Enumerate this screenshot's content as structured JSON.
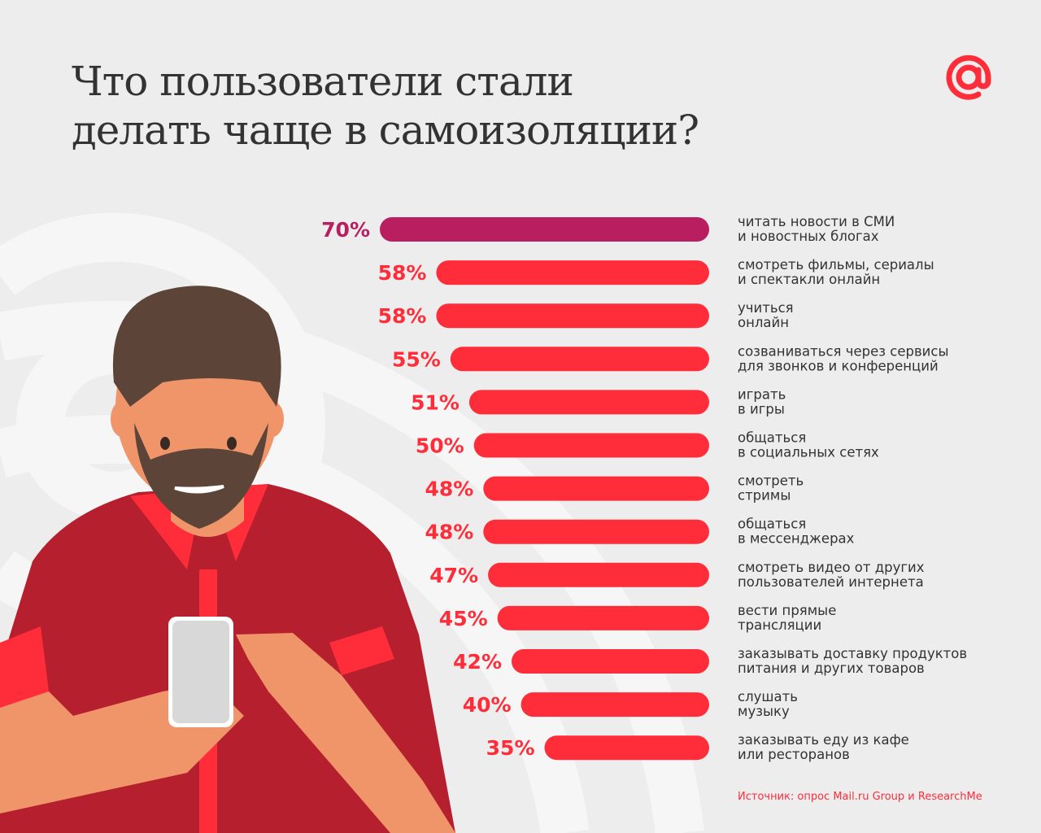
{
  "title": {
    "line1": "Что пользователи стали",
    "line2": "делать чаще в самоизоляции?"
  },
  "logo": {
    "icon": "mail-ru-at-logo",
    "color": "#ff2d3a"
  },
  "source": "Источник: опрос Mail.ru Group и ResearchMe",
  "colors": {
    "background": "#ededed",
    "highlight": "#b81e60",
    "bar": "#ff2d3a",
    "text": "#333333"
  },
  "chart_data": {
    "type": "bar",
    "orientation": "horizontal",
    "unit": "%",
    "xlim": [
      0,
      70
    ],
    "grid": false,
    "categories": [
      [
        "читать новости в СМИ",
        "и новостных блогах"
      ],
      [
        "смотреть фильмы, сериалы",
        "и спектакли онлайн"
      ],
      [
        "учиться",
        "онлайн"
      ],
      [
        "созваниваться через сервисы",
        "для звонков и конференций"
      ],
      [
        "играть",
        "в игры"
      ],
      [
        "общаться",
        "в социальных сетях"
      ],
      [
        "смотреть",
        "стримы"
      ],
      [
        "общаться",
        "в мессенджерах"
      ],
      [
        "смотреть видео от других",
        "пользователей интернета"
      ],
      [
        "вести прямые",
        "трансляции"
      ],
      [
        "заказывать доставку продуктов",
        "питания и других товаров"
      ],
      [
        "слушать",
        "музыку"
      ],
      [
        "заказывать еду из кафе",
        "или ресторанов"
      ]
    ],
    "values": [
      70,
      58,
      58,
      55,
      51,
      50,
      48,
      48,
      47,
      45,
      42,
      40,
      35
    ],
    "labels": [
      "70%",
      "58%",
      "58%",
      "55%",
      "51%",
      "50%",
      "48%",
      "48%",
      "47%",
      "45%",
      "42%",
      "40%",
      "35%"
    ],
    "highlight_index": 0
  }
}
